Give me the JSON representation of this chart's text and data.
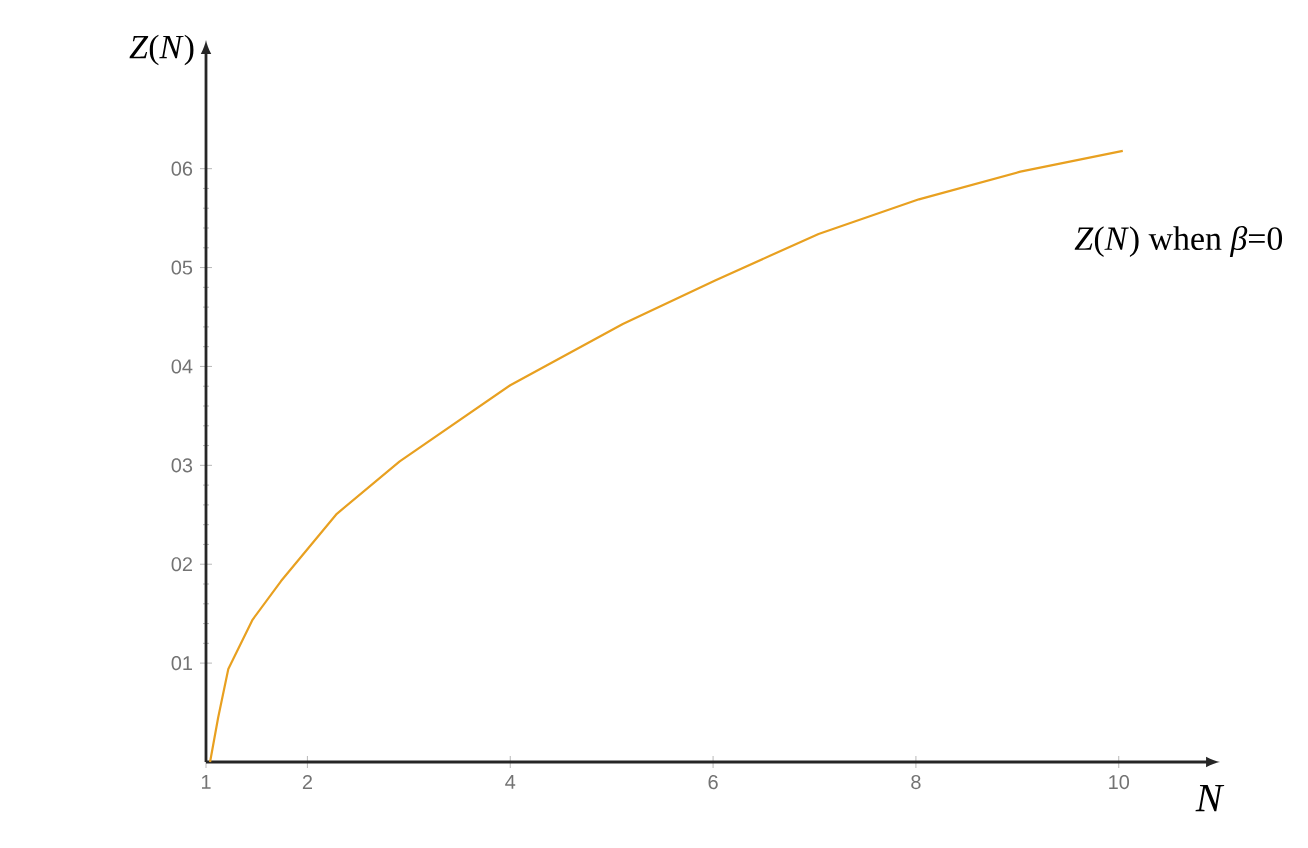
{
  "chart_data": {
    "type": "line",
    "xlabel": "*N*",
    "ylabel": "*Z*(*N*)",
    "xlim": [
      1,
      10.9
    ],
    "ylim": [
      0,
      7.2
    ],
    "xticks": [
      1,
      2,
      4,
      6,
      8,
      10
    ],
    "yticks": [
      {
        "value": 1,
        "label": "01"
      },
      {
        "value": 2,
        "label": "02"
      },
      {
        "value": 3,
        "label": "03"
      },
      {
        "value": 4,
        "label": "04"
      },
      {
        "value": 5,
        "label": "05"
      },
      {
        "value": 6,
        "label": "06"
      }
    ],
    "series": [
      {
        "name": "*Z*(*N*) when *β*=0",
        "color": "#e8a020",
        "x": [
          1.04,
          1.12,
          1.22,
          1.46,
          1.74,
          2.29,
          2.91,
          4.0,
          5.11,
          6.02,
          7.04,
          8.03,
          9.03,
          10.04
        ],
        "values": [
          0,
          0.45,
          0.94,
          1.44,
          1.83,
          2.51,
          3.04,
          3.81,
          4.43,
          4.87,
          5.34,
          5.69,
          5.97,
          6.18
        ]
      }
    ]
  }
}
